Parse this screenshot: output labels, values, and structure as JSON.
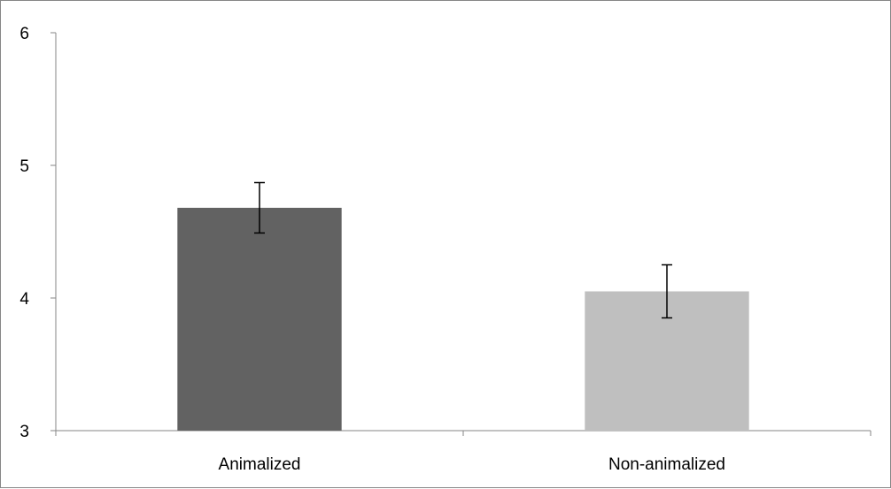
{
  "chart_data": {
    "type": "bar",
    "title": "",
    "xlabel": "",
    "ylabel": "",
    "categories": [
      "Animalized",
      "Non-animalized"
    ],
    "values": [
      4.68,
      4.05
    ],
    "error_low": [
      4.49,
      3.85
    ],
    "error_high": [
      4.87,
      4.25
    ],
    "bar_colors": [
      "#626262",
      "#bfbfbf"
    ],
    "ylim": [
      3,
      6
    ],
    "yticks": [
      3,
      4,
      5,
      6
    ],
    "ytick_labels": [
      "3",
      "4",
      "5",
      "6"
    ],
    "grid": false,
    "legend": "none"
  }
}
